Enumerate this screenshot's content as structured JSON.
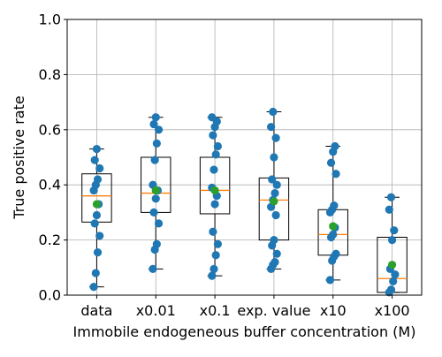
{
  "chart_data": {
    "type": "box",
    "xlabel": "Immobile endogeneous buffer concentration (M)",
    "ylabel": "True positive rate",
    "ylim": [
      0.0,
      1.0
    ],
    "yticks": [
      0.0,
      0.2,
      0.4,
      0.6,
      0.8,
      1.0
    ],
    "ytick_labels": [
      "0.0",
      "0.2",
      "0.4",
      "0.6",
      "0.8",
      "1.0"
    ],
    "grid": true,
    "categories": [
      "data",
      "x0.01",
      "x0.1",
      "exp. value",
      "x10",
      "x100"
    ],
    "colors": {
      "points": "#1f77b4",
      "median": "#ff7f0e",
      "mean": "#2ca02c",
      "box": "#000000",
      "grid": "#b0b0b0"
    },
    "boxes": [
      {
        "category": "data",
        "whisker_low": 0.03,
        "q1": 0.265,
        "median": 0.36,
        "q3": 0.44,
        "whisker_high": 0.53,
        "mean": 0.33,
        "points": [
          0.03,
          0.08,
          0.155,
          0.215,
          0.26,
          0.29,
          0.33,
          0.38,
          0.4,
          0.42,
          0.46,
          0.49,
          0.53
        ]
      },
      {
        "category": "x0.01",
        "whisker_low": 0.095,
        "q1": 0.3,
        "median": 0.37,
        "q3": 0.5,
        "whisker_high": 0.645,
        "mean": 0.38,
        "points": [
          0.095,
          0.165,
          0.185,
          0.26,
          0.3,
          0.35,
          0.38,
          0.4,
          0.49,
          0.55,
          0.6,
          0.62,
          0.645
        ]
      },
      {
        "category": "x0.1",
        "whisker_low": 0.07,
        "q1": 0.295,
        "median": 0.38,
        "q3": 0.5,
        "whisker_high": 0.645,
        "mean": 0.38,
        "points": [
          0.07,
          0.095,
          0.145,
          0.185,
          0.23,
          0.33,
          0.36,
          0.39,
          0.455,
          0.51,
          0.54,
          0.58,
          0.61,
          0.63,
          0.645
        ]
      },
      {
        "category": "exp. value",
        "whisker_low": 0.095,
        "q1": 0.2,
        "median": 0.345,
        "q3": 0.425,
        "whisker_high": 0.665,
        "mean": 0.34,
        "points": [
          0.095,
          0.11,
          0.12,
          0.15,
          0.18,
          0.2,
          0.29,
          0.32,
          0.345,
          0.37,
          0.4,
          0.42,
          0.5,
          0.57,
          0.61,
          0.665
        ]
      },
      {
        "category": "x10",
        "whisker_low": 0.055,
        "q1": 0.145,
        "median": 0.22,
        "q3": 0.31,
        "whisker_high": 0.54,
        "mean": 0.25,
        "points": [
          0.055,
          0.125,
          0.14,
          0.15,
          0.21,
          0.22,
          0.245,
          0.3,
          0.31,
          0.325,
          0.44,
          0.48,
          0.52,
          0.54
        ]
      },
      {
        "category": "x100",
        "whisker_low": 0.01,
        "q1": 0.01,
        "median": 0.06,
        "q3": 0.21,
        "whisker_high": 0.355,
        "mean": 0.11,
        "points": [
          0.01,
          0.02,
          0.05,
          0.075,
          0.095,
          0.2,
          0.235,
          0.31,
          0.355
        ]
      }
    ]
  }
}
